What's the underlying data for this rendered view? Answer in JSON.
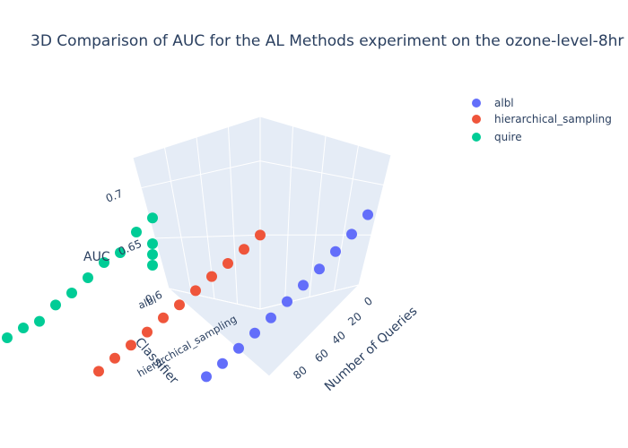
{
  "chart_data": {
    "type": "scatter",
    "title": "3D Comparison of AUC for the AL Methods experiment on the ozone-level-8hr",
    "axes": {
      "x": {
        "label": "Number of Queries",
        "ticks": [
          0,
          20,
          40,
          60,
          80
        ],
        "range": [
          0,
          100
        ]
      },
      "y": {
        "label": "Classifier",
        "categories": [
          "albl",
          "hierarchical_sampling",
          "quire"
        ]
      },
      "z": {
        "label": "AUC",
        "ticks": [
          0.6,
          0.65,
          0.7
        ],
        "range": [
          0.6,
          0.73
        ]
      }
    },
    "legend": {
      "position": "top-right"
    },
    "series": [
      {
        "name": "albl",
        "color": "#636efa",
        "x": [
          0,
          10,
          20,
          30,
          40,
          50,
          60,
          70,
          80,
          90,
          100
        ],
        "y": [
          "albl",
          "albl",
          "albl",
          "albl",
          "albl",
          "albl",
          "albl",
          "albl",
          "albl",
          "albl",
          "albl"
        ],
        "z": [
          0.657,
          0.648,
          0.641,
          0.634,
          0.628,
          0.622,
          0.616,
          0.611,
          0.606,
          0.601,
          0.598
        ]
      },
      {
        "name": "hierarchical_sampling",
        "color": "#ef553b",
        "x": [
          0,
          10,
          20,
          30,
          40,
          50,
          60,
          70,
          80,
          90,
          100
        ],
        "y": [
          "hierarchical_sampling",
          "hierarchical_sampling",
          "hierarchical_sampling",
          "hierarchical_sampling",
          "hierarchical_sampling",
          "hierarchical_sampling",
          "hierarchical_sampling",
          "hierarchical_sampling",
          "hierarchical_sampling",
          "hierarchical_sampling",
          "hierarchical_sampling"
        ],
        "z": [
          0.628,
          0.624,
          0.62,
          0.617,
          0.613,
          0.609,
          0.606,
          0.602,
          0.599,
          0.596,
          0.593
        ]
      },
      {
        "name": "quire",
        "color": "#00cc96",
        "x": [
          0,
          0,
          0,
          0,
          10,
          20,
          30,
          40,
          50,
          60,
          70,
          80,
          90,
          100
        ],
        "y": [
          "quire",
          "quire",
          "quire",
          "quire",
          "quire",
          "quire",
          "quire",
          "quire",
          "quire",
          "quire",
          "quire",
          "quire",
          "quire",
          "quire"
        ],
        "z": [
          0.59,
          0.6,
          0.61,
          0.634,
          0.63,
          0.62,
          0.62,
          0.615,
          0.61,
          0.608,
          0.602,
          0.605,
          0.605,
          0.63
        ]
      }
    ]
  }
}
